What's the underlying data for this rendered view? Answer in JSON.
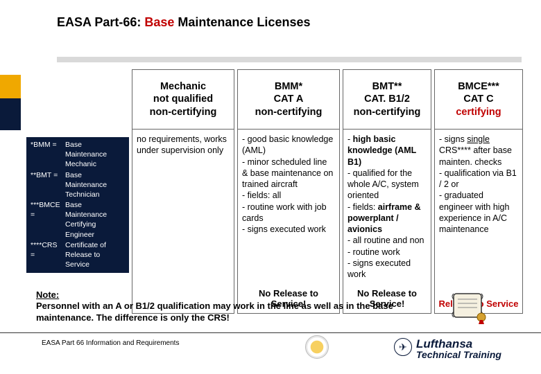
{
  "title": {
    "prefix": "EASA Part-66: ",
    "highlight": "Base",
    "suffix": " Maintenance Licenses"
  },
  "columns": [
    {
      "header_lines": [
        "Mechanic",
        "not qualified",
        "non-certifying"
      ],
      "body_html": "no requirements, works under supervision only",
      "footer": ""
    },
    {
      "header_lines": [
        "BMM*",
        "CAT A",
        "non-certifying"
      ],
      "body_html": "- good basic knowledge (AML)<br>- minor scheduled line & base maintenance on trained aircraft<br>- fields: all<br>- routine work with job cards<br>- signs executed work",
      "footer": "No Release to Service!"
    },
    {
      "header_lines": [
        "BMT**",
        "CAT. B1/2",
        "non-certifying"
      ],
      "body_html": "- <span class='b'>high basic knowledge (AML B1)</span><br>- qualified for the whole A/C, system oriented<br>- fields: <span class='b'>airframe & powerplant / avionics</span><br>- all routine and non - routine work<br>- signs executed work",
      "footer": "No Release to Service!"
    },
    {
      "header_lines": [
        "BMCE***",
        "CAT C",
        "certifying"
      ],
      "cert_last": true,
      "body_html": "- signs <span class='u'>single</span> CRS**** after base mainten. checks<br>- qualification via B1 / 2 or<br>- graduated engineer with high experience in A/C maintenance",
      "footer": "Release to Service",
      "footer_red": true
    }
  ],
  "legend": [
    {
      "k": "*BMM =",
      "v": "Base Maintenance Mechanic"
    },
    {
      "k": "**BMT =",
      "v": "Base Maintenance Technician"
    },
    {
      "k": "***BMCE =",
      "v": "Base Maintenance Certifying Engineer"
    },
    {
      "k": "****CRS =",
      "v": "Certificate of Release to Service"
    }
  ],
  "note": {
    "label": "Note:",
    "text": "Personnel with an A or B1/2 qualification may work in the line as well as in the base maintenance. The difference is only the CRS!"
  },
  "footer": {
    "text": "EASA Part 66 Information and Requirements",
    "brand_top": "Lufthansa",
    "brand_bot": "Technical Training"
  },
  "colors": {
    "highlight": "#c00000",
    "stripe_gold": "#f0a800",
    "stripe_navy": "#0a1a3a",
    "rule": "#d9d9d9"
  }
}
